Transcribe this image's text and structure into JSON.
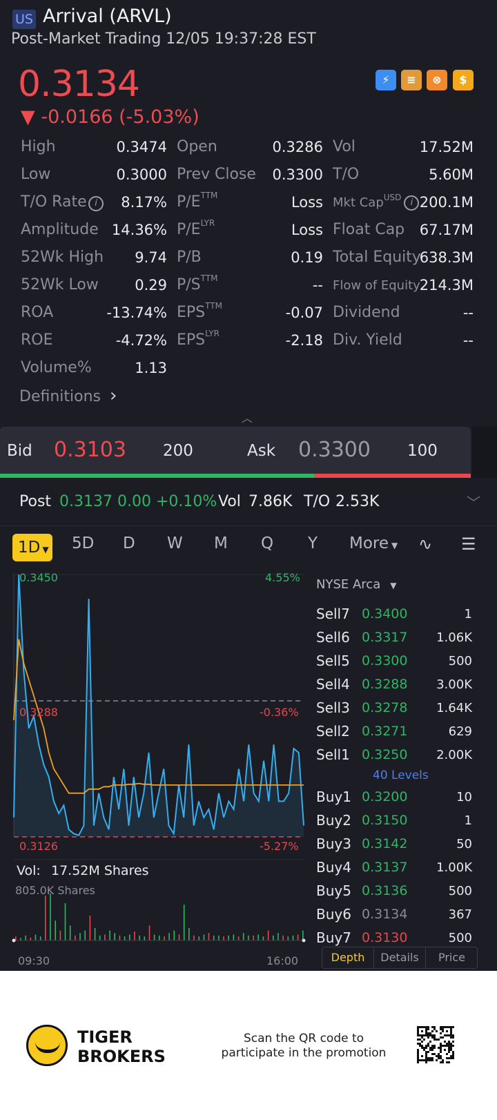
{
  "header": {
    "market_badge": "US",
    "title": "Arrival (ARVL)",
    "subtitle": "Post-Market Trading 12/05 19:37:28 EST"
  },
  "quote": {
    "price": "0.3134",
    "change": "▼ -0.0166 (-5.03%)",
    "badges": [
      {
        "icon": "lightning-level1-icon",
        "color": "#3d8ef0"
      },
      {
        "icon": "stack-a-icon",
        "color": "#e09a3c"
      },
      {
        "icon": "crossed-circle-icon",
        "color": "#f08a2c"
      },
      {
        "icon": "dollar-icon",
        "color": "#f4a81c"
      }
    ]
  },
  "stats": {
    "col1": [
      {
        "label": "High",
        "value": "0.3474"
      },
      {
        "label": "Low",
        "value": "0.3000"
      },
      {
        "label": "T/O Rate",
        "value": "8.17%"
      },
      {
        "label": "Amplitude",
        "value": "14.36%"
      },
      {
        "label": "52Wk High",
        "value": "9.74"
      },
      {
        "label": "52Wk Low",
        "value": "0.29"
      },
      {
        "label": "ROA",
        "value": "-13.74%"
      },
      {
        "label": "ROE",
        "value": "-4.72%"
      },
      {
        "label": "Volume%",
        "value": "1.13"
      }
    ],
    "col2": [
      {
        "label": "Open",
        "sup": "",
        "value": "0.3286"
      },
      {
        "label": "Prev Close",
        "sup": "",
        "value": "0.3300"
      },
      {
        "label": "P/E",
        "sup": "TTM",
        "value": "Loss"
      },
      {
        "label": "P/E",
        "sup": "LYR",
        "value": "Loss"
      },
      {
        "label": "P/B",
        "sup": "",
        "value": "0.19"
      },
      {
        "label": "P/S",
        "sup": "TTM",
        "value": "--"
      },
      {
        "label": "EPS",
        "sup": "TTM",
        "value": "-0.07"
      },
      {
        "label": "EPS",
        "sup": "LYR",
        "value": "-2.18"
      }
    ],
    "col3": [
      {
        "label": "Vol",
        "sup": "",
        "value": "17.52M"
      },
      {
        "label": "T/O",
        "sup": "",
        "value": "5.60M"
      },
      {
        "label": "Mkt Cap",
        "sup": "USD",
        "value": "200.1M"
      },
      {
        "label": "Float Cap",
        "sup": "",
        "value": "67.17M"
      },
      {
        "label": "Total Equity",
        "sup": "",
        "value": "638.3M"
      },
      {
        "label": "Flow of Equity",
        "sup": "",
        "value": "214.3M"
      },
      {
        "label": "Dividend",
        "sup": "",
        "value": "--"
      },
      {
        "label": "Div. Yield",
        "sup": "",
        "value": "--"
      }
    ],
    "definitions_label": "Definitions"
  },
  "bidask": {
    "bid_label": "Bid",
    "bid_price": "0.3103",
    "bid_size": "200",
    "ask_label": "Ask",
    "ask_price": "0.3300",
    "ask_size": "100"
  },
  "post": {
    "label": "Post",
    "price_change": "0.3137 0.00 +0.10%",
    "vol_label": "Vol",
    "vol": "7.86K",
    "to_label": "T/O",
    "to": "2.53K"
  },
  "tabs": {
    "items": [
      "1D",
      "5D",
      "D",
      "W",
      "M",
      "Q",
      "Y",
      "More"
    ],
    "selected": "1D"
  },
  "chart_data": {
    "type": "line",
    "y_top_label": "0.3450",
    "y_top_pct": "4.55%",
    "y_mid_label": "0.3288",
    "y_mid_pct": "-0.36%",
    "y_bot_label": "0.3126",
    "y_bot_pct": "-5.27%",
    "ylim": [
      0.3126,
      0.345
    ],
    "x_start": "09:30",
    "x_end": "16:00",
    "prev_close": 0.33,
    "series": [
      {
        "values": [
          0.315,
          0.345,
          0.333,
          0.326,
          0.3275,
          0.324,
          0.3215,
          0.32,
          0.317,
          0.3155,
          0.3165,
          0.3135,
          0.313,
          0.3128,
          0.314,
          0.342,
          0.314,
          0.318,
          0.315,
          0.3135,
          0.32,
          0.316,
          0.321,
          0.314,
          0.32,
          0.315,
          0.318,
          0.323,
          0.315,
          0.318,
          0.321,
          0.314,
          0.313,
          0.319,
          0.315,
          0.324,
          0.314,
          0.317,
          0.315,
          0.316,
          0.3135,
          0.318,
          0.315,
          0.317,
          0.316,
          0.321,
          0.317,
          0.324,
          0.318,
          0.317,
          0.322,
          0.317,
          0.324,
          0.317,
          0.317,
          0.318,
          0.3235,
          0.323,
          0.314
        ]
      },
      {
        "values": [
          0.327,
          0.337,
          0.334,
          0.332,
          0.33,
          0.328,
          0.326,
          0.323,
          0.321,
          0.32,
          0.319,
          0.318,
          0.318,
          0.318,
          0.318,
          0.3185,
          0.3185,
          0.3185,
          0.3188,
          0.3188,
          0.319,
          0.319,
          0.319,
          0.3191,
          0.3191,
          0.3192,
          0.3191,
          0.3191,
          0.319,
          0.319,
          0.319,
          0.319,
          0.319,
          0.319,
          0.319,
          0.319,
          0.319,
          0.319,
          0.319,
          0.319,
          0.319,
          0.319,
          0.319,
          0.319,
          0.319,
          0.319,
          0.319,
          0.319,
          0.319,
          0.319,
          0.319,
          0.319,
          0.319,
          0.319,
          0.319,
          0.319,
          0.319,
          0.319,
          0.319
        ]
      }
    ],
    "volume_label": "Vol:",
    "volume_total": "17.52M Shares",
    "volume_scale": "805.0K Shares",
    "volume_bars": [
      0.08,
      0.05,
      0.1,
      0.06,
      0.12,
      0.08,
      0.9,
      0.95,
      0.4,
      0.2,
      0.75,
      0.3,
      0.1,
      0.15,
      0.2,
      0.5,
      0.25,
      0.1,
      0.12,
      0.2,
      0.15,
      0.1,
      0.08,
      0.12,
      0.18,
      0.1,
      0.08,
      0.3,
      0.12,
      0.1,
      0.08,
      0.15,
      0.2,
      0.12,
      0.72,
      0.25,
      0.1,
      0.08,
      0.12,
      0.15,
      0.1,
      0.1,
      0.08,
      0.1,
      0.12,
      0.08,
      0.15,
      0.1,
      0.1,
      0.12,
      0.08,
      0.2,
      0.1,
      0.15,
      0.1,
      0.08,
      0.1,
      0.12,
      0.2
    ]
  },
  "orderbook": {
    "exchange": "NYSE Arca",
    "sells": [
      {
        "name": "Sell7",
        "price": "0.3400",
        "size": "1"
      },
      {
        "name": "Sell6",
        "price": "0.3317",
        "size": "1.06K"
      },
      {
        "name": "Sell5",
        "price": "0.3300",
        "size": "500"
      },
      {
        "name": "Sell4",
        "price": "0.3288",
        "size": "3.00K"
      },
      {
        "name": "Sell3",
        "price": "0.3278",
        "size": "1.64K"
      },
      {
        "name": "Sell2",
        "price": "0.3271",
        "size": "629"
      },
      {
        "name": "Sell1",
        "price": "0.3250",
        "size": "2.00K"
      }
    ],
    "levels": "40 Levels",
    "buys": [
      {
        "name": "Buy1",
        "price": "0.3200",
        "size": "10",
        "color": "#2fb565"
      },
      {
        "name": "Buy2",
        "price": "0.3150",
        "size": "1",
        "color": "#2fb565"
      },
      {
        "name": "Buy3",
        "price": "0.3142",
        "size": "50",
        "color": "#2fb565"
      },
      {
        "name": "Buy4",
        "price": "0.3137",
        "size": "1.00K",
        "color": "#2fb565"
      },
      {
        "name": "Buy5",
        "price": "0.3136",
        "size": "500",
        "color": "#2fb565"
      },
      {
        "name": "Buy6",
        "price": "0.3134",
        "size": "367",
        "color": "#8a8b94"
      },
      {
        "name": "Buy7",
        "price": "0.3130",
        "size": "500",
        "color": "#e5474d"
      }
    ],
    "tabs": [
      "Depth",
      "Details",
      "Price"
    ]
  },
  "footer": {
    "brand_line1": "TIGER",
    "brand_line2": "BROKERS",
    "promo_line1": "Scan the QR code to",
    "promo_line2": "participate in the promotion"
  }
}
